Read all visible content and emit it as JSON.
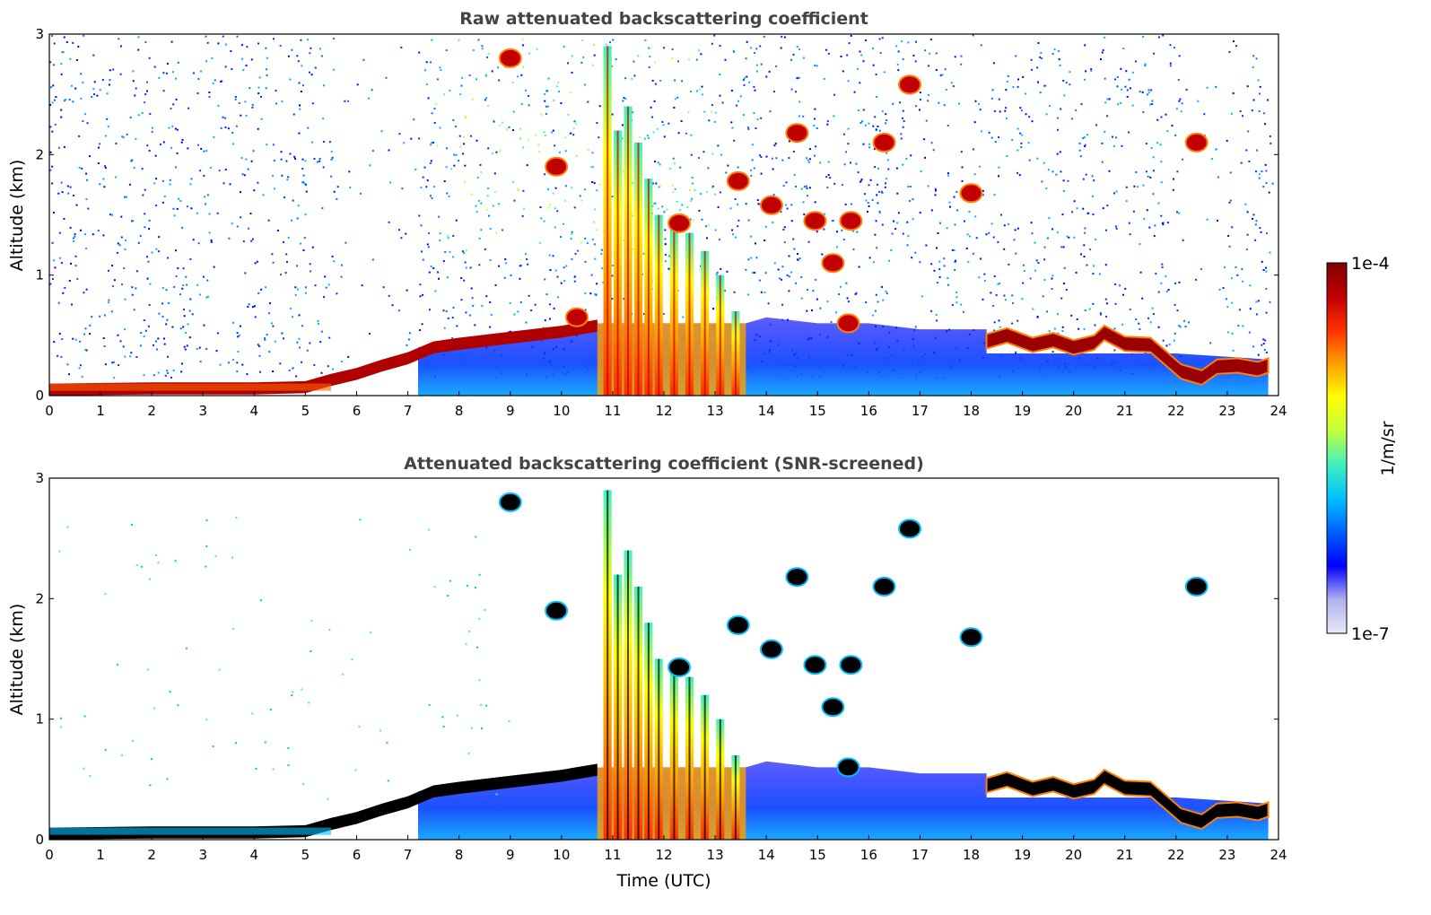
{
  "chart_data": [
    {
      "type": "heatmap",
      "title": "Raw attenuated backscattering coefficient",
      "xlabel": "",
      "ylabel": "Altitude (km)",
      "xlim": [
        0,
        24
      ],
      "ylim": [
        0,
        3
      ],
      "xticks": [
        0,
        1,
        2,
        3,
        4,
        5,
        6,
        7,
        8,
        9,
        10,
        11,
        12,
        13,
        14,
        15,
        16,
        17,
        18,
        19,
        20,
        21,
        22,
        23,
        24
      ],
      "yticks": [
        0,
        1,
        2,
        3
      ],
      "boundary_layer": {
        "x": [
          0,
          2,
          4,
          5,
          5.5,
          6,
          6.5,
          7,
          7.5,
          8,
          9,
          10,
          10.7
        ],
        "y": [
          0.07,
          0.08,
          0.08,
          0.09,
          0.15,
          0.2,
          0.27,
          0.33,
          0.42,
          0.45,
          0.5,
          0.55,
          0.6
        ]
      },
      "low_cloud_layer": {
        "x": [
          18.3,
          18.7,
          19.2,
          19.6,
          20,
          20.4,
          20.6,
          21,
          21.5,
          22.1,
          22.5,
          22.8,
          23.2,
          23.6,
          23.8
        ],
        "y": [
          0.45,
          0.5,
          0.42,
          0.46,
          0.4,
          0.44,
          0.52,
          0.43,
          0.42,
          0.2,
          0.15,
          0.24,
          0.25,
          0.22,
          0.25
        ]
      },
      "precipitation_streaks": [
        {
          "x": 10.9,
          "top": 2.9
        },
        {
          "x": 11.1,
          "top": 2.2
        },
        {
          "x": 11.3,
          "top": 2.4
        },
        {
          "x": 11.5,
          "top": 2.1
        },
        {
          "x": 11.7,
          "top": 1.8
        },
        {
          "x": 11.9,
          "top": 1.5
        },
        {
          "x": 12.2,
          "top": 1.4
        },
        {
          "x": 12.5,
          "top": 1.35
        },
        {
          "x": 12.8,
          "top": 1.2
        },
        {
          "x": 13.1,
          "top": 1.0
        },
        {
          "x": 13.4,
          "top": 0.7
        }
      ],
      "cloud_patches": [
        {
          "x": 9.9,
          "y": 1.9
        },
        {
          "x": 10.3,
          "y": 0.65
        },
        {
          "x": 12.3,
          "y": 1.43
        },
        {
          "x": 13.45,
          "y": 1.78
        },
        {
          "x": 14.1,
          "y": 1.58
        },
        {
          "x": 14.6,
          "y": 2.18
        },
        {
          "x": 14.95,
          "y": 1.45
        },
        {
          "x": 15.3,
          "y": 1.1
        },
        {
          "x": 15.65,
          "y": 1.45
        },
        {
          "x": 16.3,
          "y": 2.1
        },
        {
          "x": 15.6,
          "y": 0.6
        },
        {
          "x": 16.8,
          "y": 2.58
        },
        {
          "x": 18.0,
          "y": 1.68
        },
        {
          "x": 22.4,
          "y": 2.1
        },
        {
          "x": 9.0,
          "y": 2.8
        }
      ]
    },
    {
      "type": "heatmap",
      "title": "Attenuated backscattering coefficient (SNR-screened)",
      "xlabel": "Time (UTC)",
      "ylabel": "Altitude (km)",
      "xlim": [
        0,
        24
      ],
      "ylim": [
        0,
        3
      ],
      "xticks": [
        0,
        1,
        2,
        3,
        4,
        5,
        6,
        7,
        8,
        9,
        10,
        11,
        12,
        13,
        14,
        15,
        16,
        17,
        18,
        19,
        20,
        21,
        22,
        23,
        24
      ],
      "yticks": [
        0,
        1,
        2,
        3
      ],
      "boundary_layer": {
        "x": [
          0,
          2,
          4,
          5,
          5.5,
          6,
          6.5,
          7,
          7.5,
          8,
          9,
          10,
          10.7
        ],
        "y": [
          0.07,
          0.08,
          0.08,
          0.09,
          0.15,
          0.2,
          0.27,
          0.33,
          0.42,
          0.45,
          0.5,
          0.55,
          0.6
        ]
      },
      "low_cloud_layer": {
        "x": [
          18.3,
          18.7,
          19.2,
          19.6,
          20,
          20.4,
          20.6,
          21,
          21.5,
          22.1,
          22.5,
          22.8,
          23.2,
          23.6,
          23.8
        ],
        "y": [
          0.45,
          0.5,
          0.42,
          0.46,
          0.4,
          0.44,
          0.52,
          0.43,
          0.42,
          0.2,
          0.15,
          0.24,
          0.25,
          0.22,
          0.25
        ]
      },
      "precipitation_streaks": [
        {
          "x": 10.9,
          "top": 2.9
        },
        {
          "x": 11.1,
          "top": 2.2
        },
        {
          "x": 11.3,
          "top": 2.4
        },
        {
          "x": 11.5,
          "top": 2.1
        },
        {
          "x": 11.7,
          "top": 1.8
        },
        {
          "x": 11.9,
          "top": 1.5
        },
        {
          "x": 12.2,
          "top": 1.4
        },
        {
          "x": 12.5,
          "top": 1.35
        },
        {
          "x": 12.8,
          "top": 1.2
        },
        {
          "x": 13.1,
          "top": 1.0
        },
        {
          "x": 13.4,
          "top": 0.7
        }
      ],
      "cloud_patches": [
        {
          "x": 9.9,
          "y": 1.9
        },
        {
          "x": 12.3,
          "y": 1.43
        },
        {
          "x": 13.45,
          "y": 1.78
        },
        {
          "x": 14.1,
          "y": 1.58
        },
        {
          "x": 14.6,
          "y": 2.18
        },
        {
          "x": 14.95,
          "y": 1.45
        },
        {
          "x": 15.3,
          "y": 1.1
        },
        {
          "x": 15.65,
          "y": 1.45
        },
        {
          "x": 16.3,
          "y": 2.1
        },
        {
          "x": 15.6,
          "y": 0.6
        },
        {
          "x": 16.8,
          "y": 2.58
        },
        {
          "x": 18.0,
          "y": 1.68
        },
        {
          "x": 22.4,
          "y": 2.1
        },
        {
          "x": 9.0,
          "y": 2.8
        }
      ]
    }
  ],
  "colorbar": {
    "label": "1/m/sr",
    "max_label": "1e-4",
    "min_label": "1e-7",
    "stops": [
      "#e8e8f8",
      "#b0b0ee",
      "#0000ff",
      "#0060ff",
      "#00c0ff",
      "#40f0c0",
      "#c0ff40",
      "#ffff00",
      "#ffa000",
      "#ff3000",
      "#c00000",
      "#800000"
    ]
  }
}
